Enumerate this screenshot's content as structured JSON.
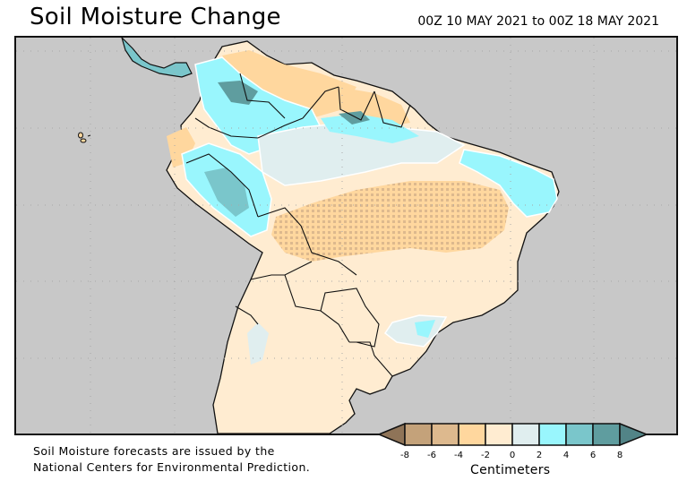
{
  "header": {
    "title": "Soil Moisture Change",
    "date_range": "00Z 10 MAY 2021 to 00Z 18 MAY 2021"
  },
  "map": {
    "region": "South America",
    "variable": "Soil Moisture Change",
    "ocean_color": "#c8c8c8",
    "border_color": "#111111"
  },
  "legend": {
    "units_label": "Centimeters",
    "ticks": [
      "-8",
      "-6",
      "-4",
      "-2",
      "0",
      "2",
      "4",
      "6",
      "8"
    ],
    "bins": [
      {
        "range": "< -8",
        "color": "#8f7458"
      },
      {
        "range": "-8 to -6",
        "color": "#c4a27a"
      },
      {
        "range": "-6 to -4",
        "color": "#ddb98e"
      },
      {
        "range": "-4 to -2",
        "color": "#ffd79e"
      },
      {
        "range": "-2 to 0",
        "color": "#ffecd1"
      },
      {
        "range": "0 to 2",
        "color": "#e0eeef"
      },
      {
        "range": "2 to 4",
        "color": "#99f6fd"
      },
      {
        "range": "4 to 6",
        "color": "#7ac6cb"
      },
      {
        "range": "6 to 8",
        "color": "#5f9d9f"
      },
      {
        "range": "> 8",
        "color": "#528487"
      }
    ]
  },
  "footer": {
    "credit_line1": "Soil Moisture forecasts are issued by the",
    "credit_line2": "National Centers for Environmental Prediction."
  }
}
